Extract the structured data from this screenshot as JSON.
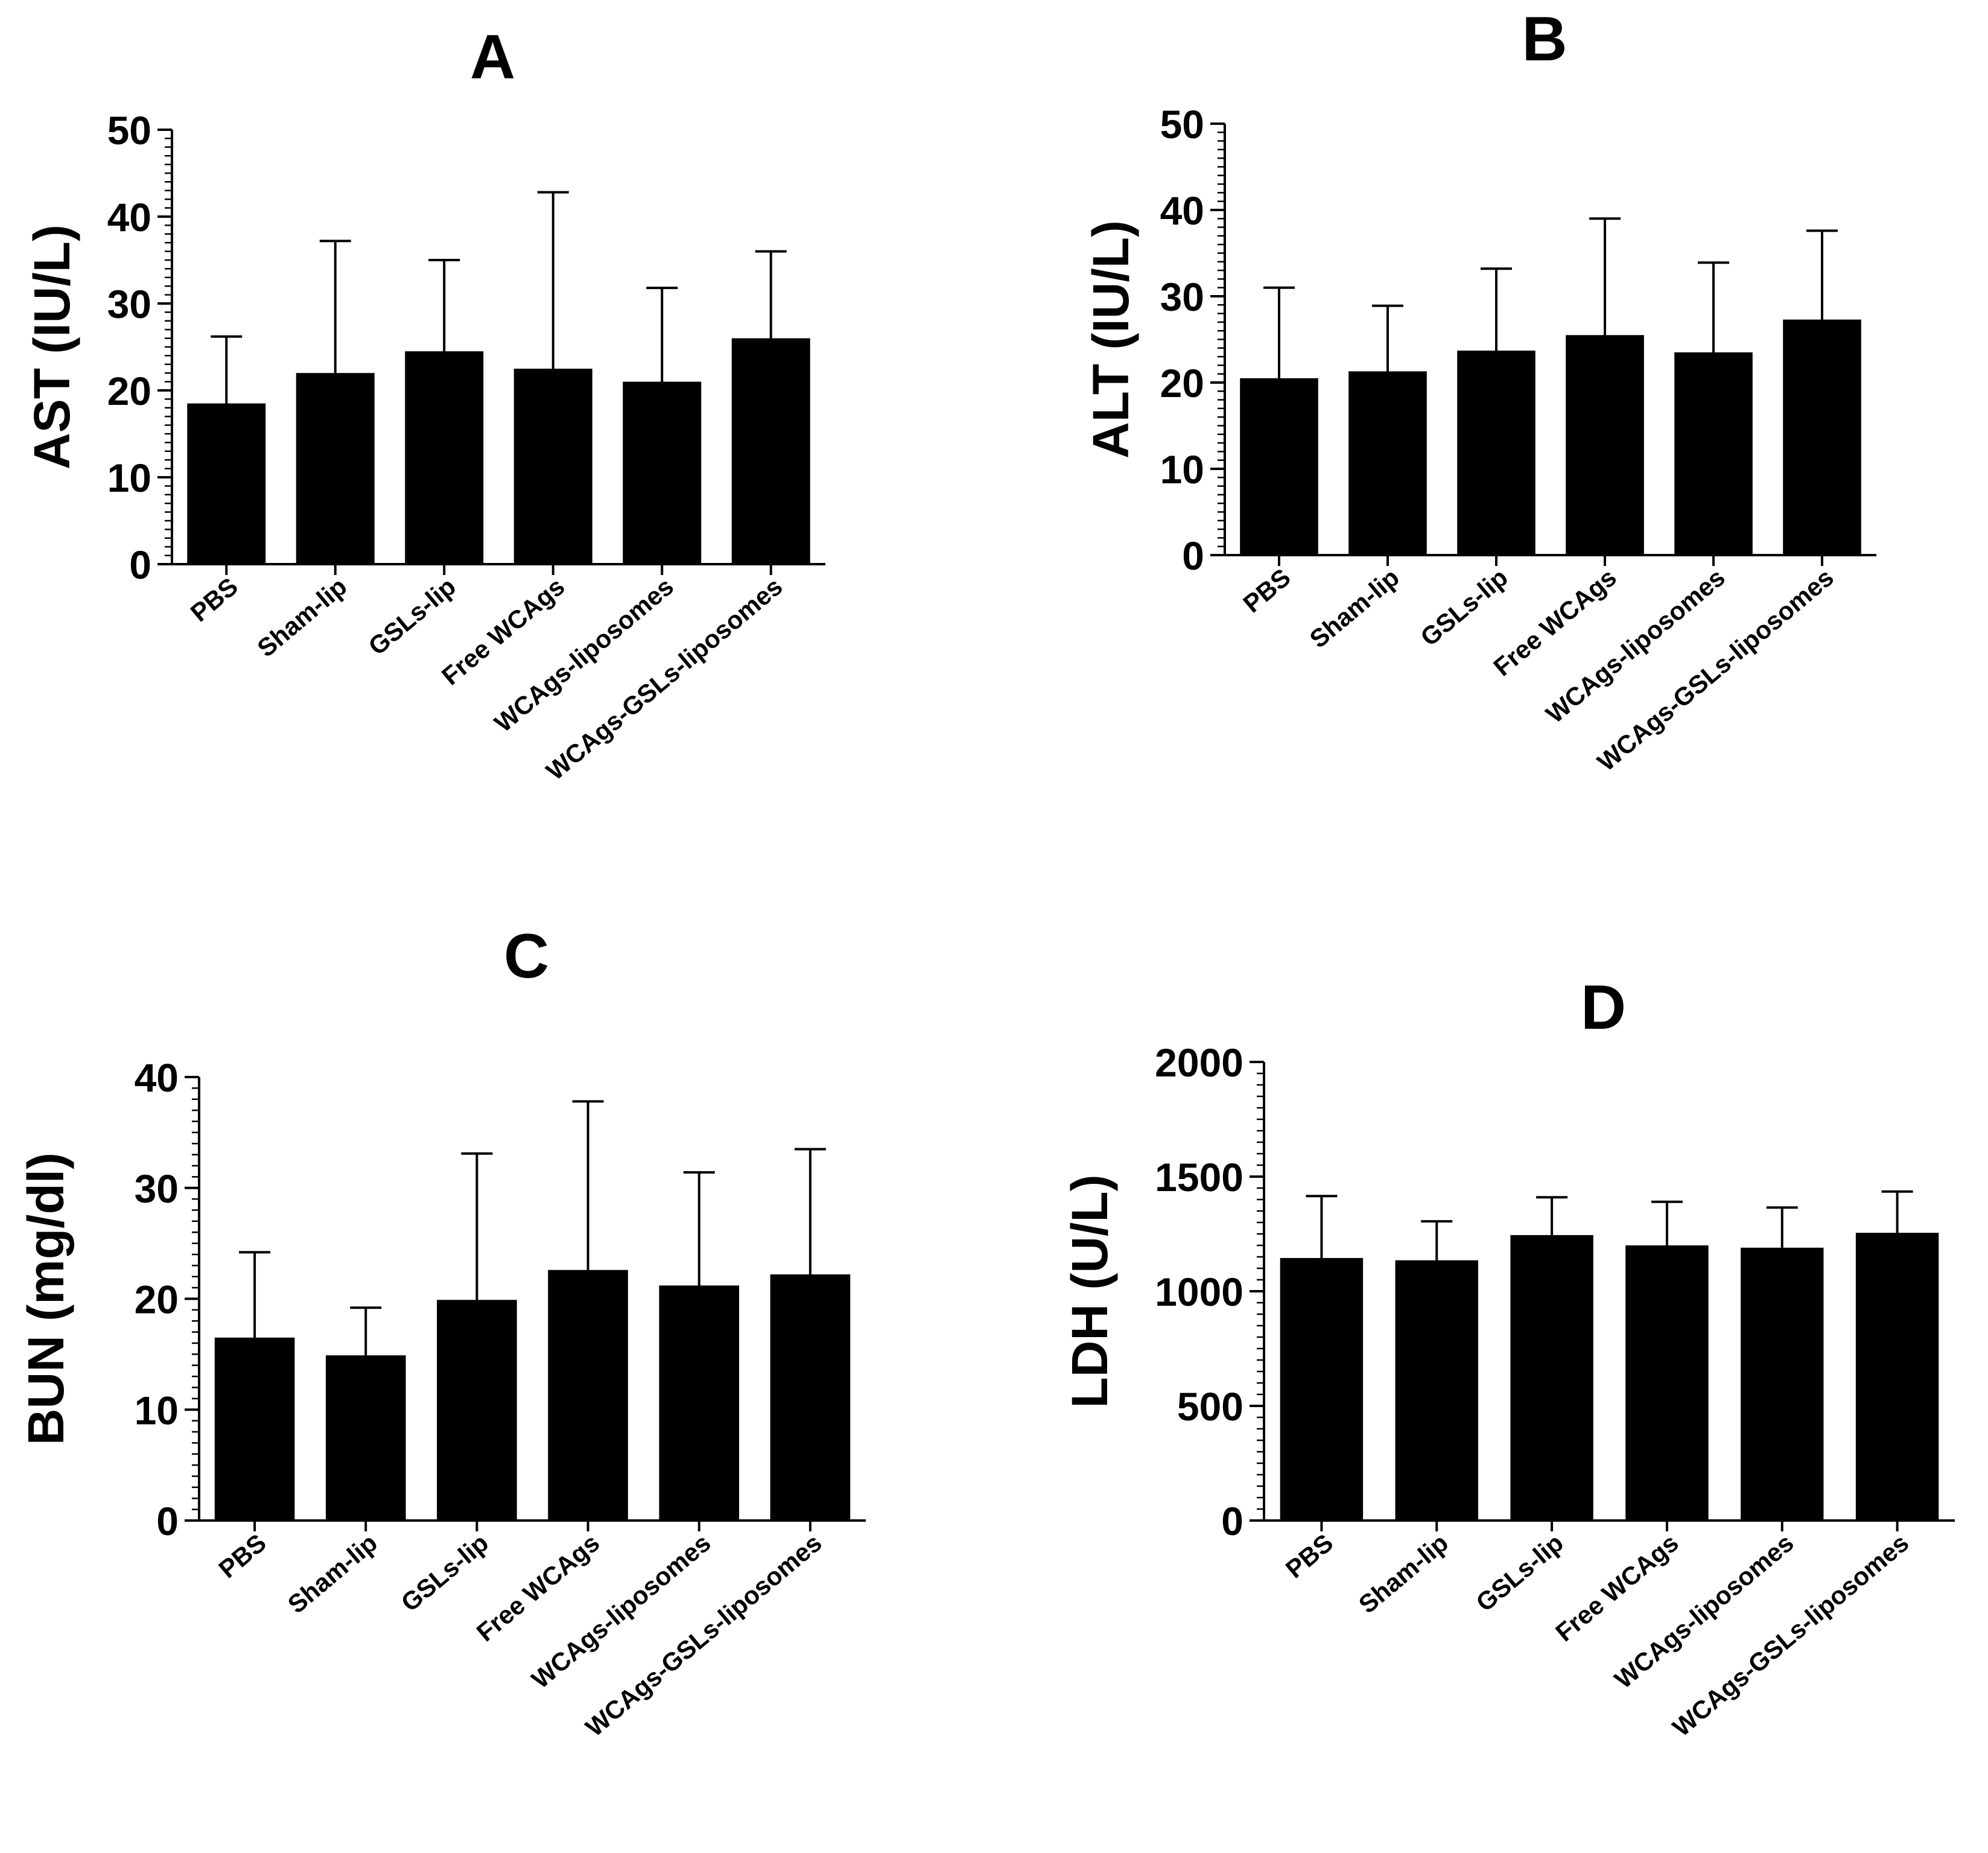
{
  "chart_data": [
    {
      "panel": "A",
      "type": "bar",
      "title": "A",
      "xlabel": "",
      "ylabel": "AST (IU/L)",
      "ylim": [
        0,
        50
      ],
      "yticks": [
        "0",
        "10",
        "20",
        "30",
        "40",
        "50"
      ],
      "categories": [
        "PBS",
        "Sham-lip",
        "GSLs-lip",
        "Free WCAgs",
        "WCAgs-liposomes",
        "WCAgs-GSLs-liposomes"
      ],
      "values": [
        18.5,
        22,
        24.5,
        22.5,
        21,
        26
      ],
      "errors": [
        7.7,
        15.2,
        10.5,
        20.3,
        10.8,
        10
      ]
    },
    {
      "panel": "B",
      "type": "bar",
      "title": "B",
      "xlabel": "",
      "ylabel": "ALT (IU/L)",
      "ylim": [
        0,
        50
      ],
      "yticks": [
        "0",
        "10",
        "20",
        "30",
        "40",
        "50"
      ],
      "categories": [
        "PBS",
        "Sham-lip",
        "GSLs-lip",
        "Free WCAgs",
        "WCAgs-liposomes",
        "WCAgs-GSLs-liposomes"
      ],
      "values": [
        20.5,
        21.3,
        23.7,
        25.5,
        23.5,
        27.3
      ],
      "errors": [
        10.5,
        7.6,
        9.5,
        13.5,
        10.4,
        10.3
      ]
    },
    {
      "panel": "C",
      "type": "bar",
      "title": "C",
      "xlabel": "",
      "ylabel": "BUN (mg/dl)",
      "ylim": [
        0,
        40
      ],
      "yticks": [
        "0",
        "10",
        "20",
        "30",
        "40"
      ],
      "categories": [
        "PBS",
        "Sham-lip",
        "GSLs-lip",
        "Free WCAgs",
        "WCAgs-liposomes",
        "WCAgs-GSLs-liposomes"
      ],
      "values": [
        16.5,
        14.9,
        19.9,
        22.6,
        21.2,
        22.2
      ],
      "errors": [
        7.7,
        4.3,
        13.2,
        15.2,
        10.2,
        11.3
      ]
    },
    {
      "panel": "D",
      "type": "bar",
      "title": "D",
      "xlabel": "",
      "ylabel": "LDH (U/L)",
      "ylim": [
        0,
        2000
      ],
      "yticks": [
        "0",
        "500",
        "1000",
        "1500",
        "2000"
      ],
      "categories": [
        "PBS",
        "Sham-lip",
        "GSLs-lip",
        "Free WCAgs",
        "WCAgs-liposomes",
        "WCAgs-GSLs-liposomes"
      ],
      "values": [
        1145,
        1135,
        1245,
        1200,
        1190,
        1255
      ],
      "errors": [
        270,
        170,
        165,
        190,
        175,
        180
      ]
    }
  ]
}
